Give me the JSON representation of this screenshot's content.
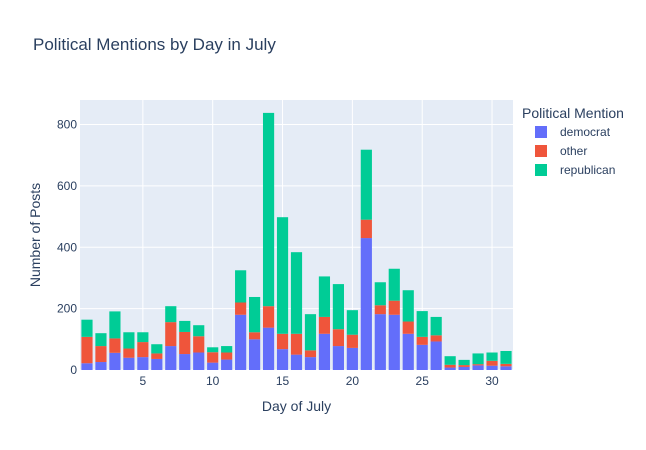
{
  "chart_data": {
    "type": "bar",
    "stacked": true,
    "title": "Political Mentions by Day in July",
    "xlabel": "Day of July",
    "ylabel": "Number of Posts",
    "legend_title": "Political Mention",
    "legend_position": "right",
    "grid": true,
    "xlim": [
      0.5,
      31.5
    ],
    "ylim": [
      0,
      880
    ],
    "x_ticks": [
      5,
      10,
      15,
      20,
      25,
      30
    ],
    "y_ticks": [
      0,
      200,
      400,
      600,
      800
    ],
    "x": [
      1,
      2,
      3,
      4,
      5,
      6,
      7,
      8,
      9,
      10,
      11,
      12,
      13,
      14,
      15,
      16,
      17,
      18,
      19,
      20,
      21,
      22,
      23,
      24,
      25,
      26,
      27,
      28,
      29,
      30,
      31
    ],
    "series": [
      {
        "name": "democrat",
        "color": "#636efa",
        "values": [
          22,
          26,
          56,
          40,
          42,
          36,
          78,
          52,
          57,
          24,
          34,
          180,
          100,
          138,
          68,
          50,
          42,
          118,
          78,
          72,
          430,
          182,
          180,
          118,
          82,
          93,
          8,
          10,
          15,
          14,
          12
        ]
      },
      {
        "name": "other",
        "color": "#ef553b",
        "values": [
          86,
          52,
          47,
          30,
          49,
          18,
          78,
          72,
          53,
          34,
          23,
          40,
          23,
          70,
          50,
          68,
          22,
          55,
          55,
          43,
          60,
          29,
          46,
          40,
          26,
          20,
          9,
          6,
          4,
          16,
          8
        ]
      },
      {
        "name": "republican",
        "color": "#00cc96",
        "values": [
          56,
          42,
          88,
          53,
          32,
          30,
          52,
          36,
          36,
          16,
          21,
          105,
          115,
          630,
          380,
          266,
          118,
          132,
          147,
          80,
          228,
          75,
          104,
          102,
          84,
          60,
          28,
          17,
          35,
          27,
          42
        ]
      }
    ]
  }
}
